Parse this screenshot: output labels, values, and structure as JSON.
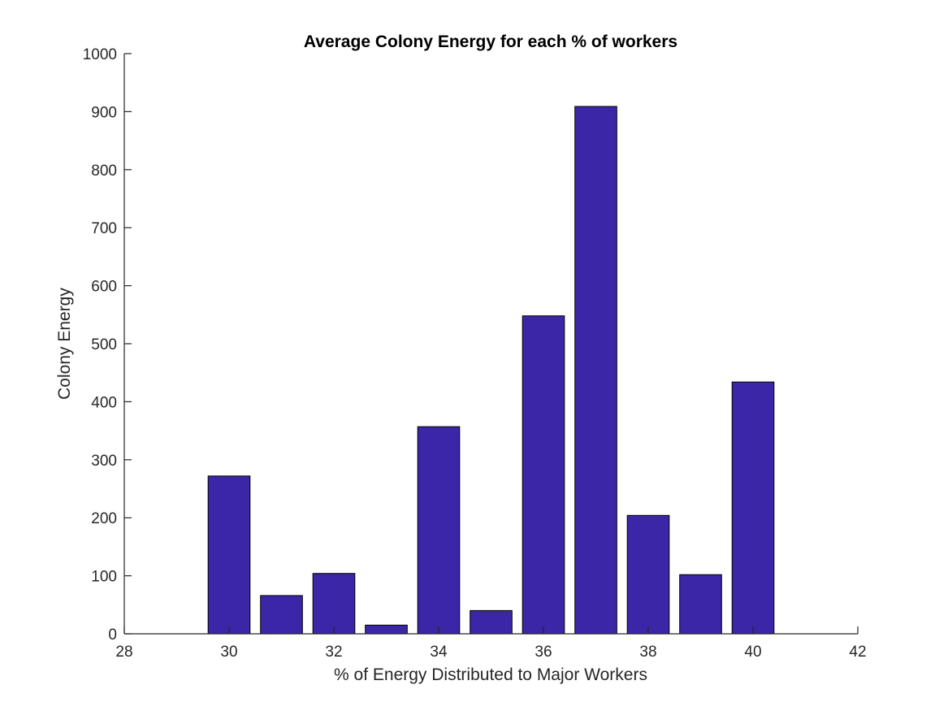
{
  "chart_data": {
    "type": "bar",
    "title": "Average Colony Energy for each % of workers",
    "xlabel": "% of Energy Distributed to Major Workers",
    "ylabel": "Colony Energy",
    "x": [
      30,
      31,
      32,
      33,
      34,
      35,
      36,
      37,
      38,
      39,
      40
    ],
    "values": [
      272,
      66,
      104,
      15,
      357,
      40,
      548,
      909,
      204,
      102,
      434
    ],
    "xlim": [
      28,
      42
    ],
    "ylim": [
      0,
      1000
    ],
    "xticks": [
      28,
      30,
      32,
      34,
      36,
      38,
      40,
      42
    ],
    "yticks": [
      0,
      100,
      200,
      300,
      400,
      500,
      600,
      700,
      800,
      900,
      1000
    ],
    "bar_width": 0.8,
    "grid": false,
    "legend": "none",
    "colors": {
      "bar_fill": "#3c26a8",
      "bar_edge": "#000000",
      "axis": "#262626"
    }
  }
}
